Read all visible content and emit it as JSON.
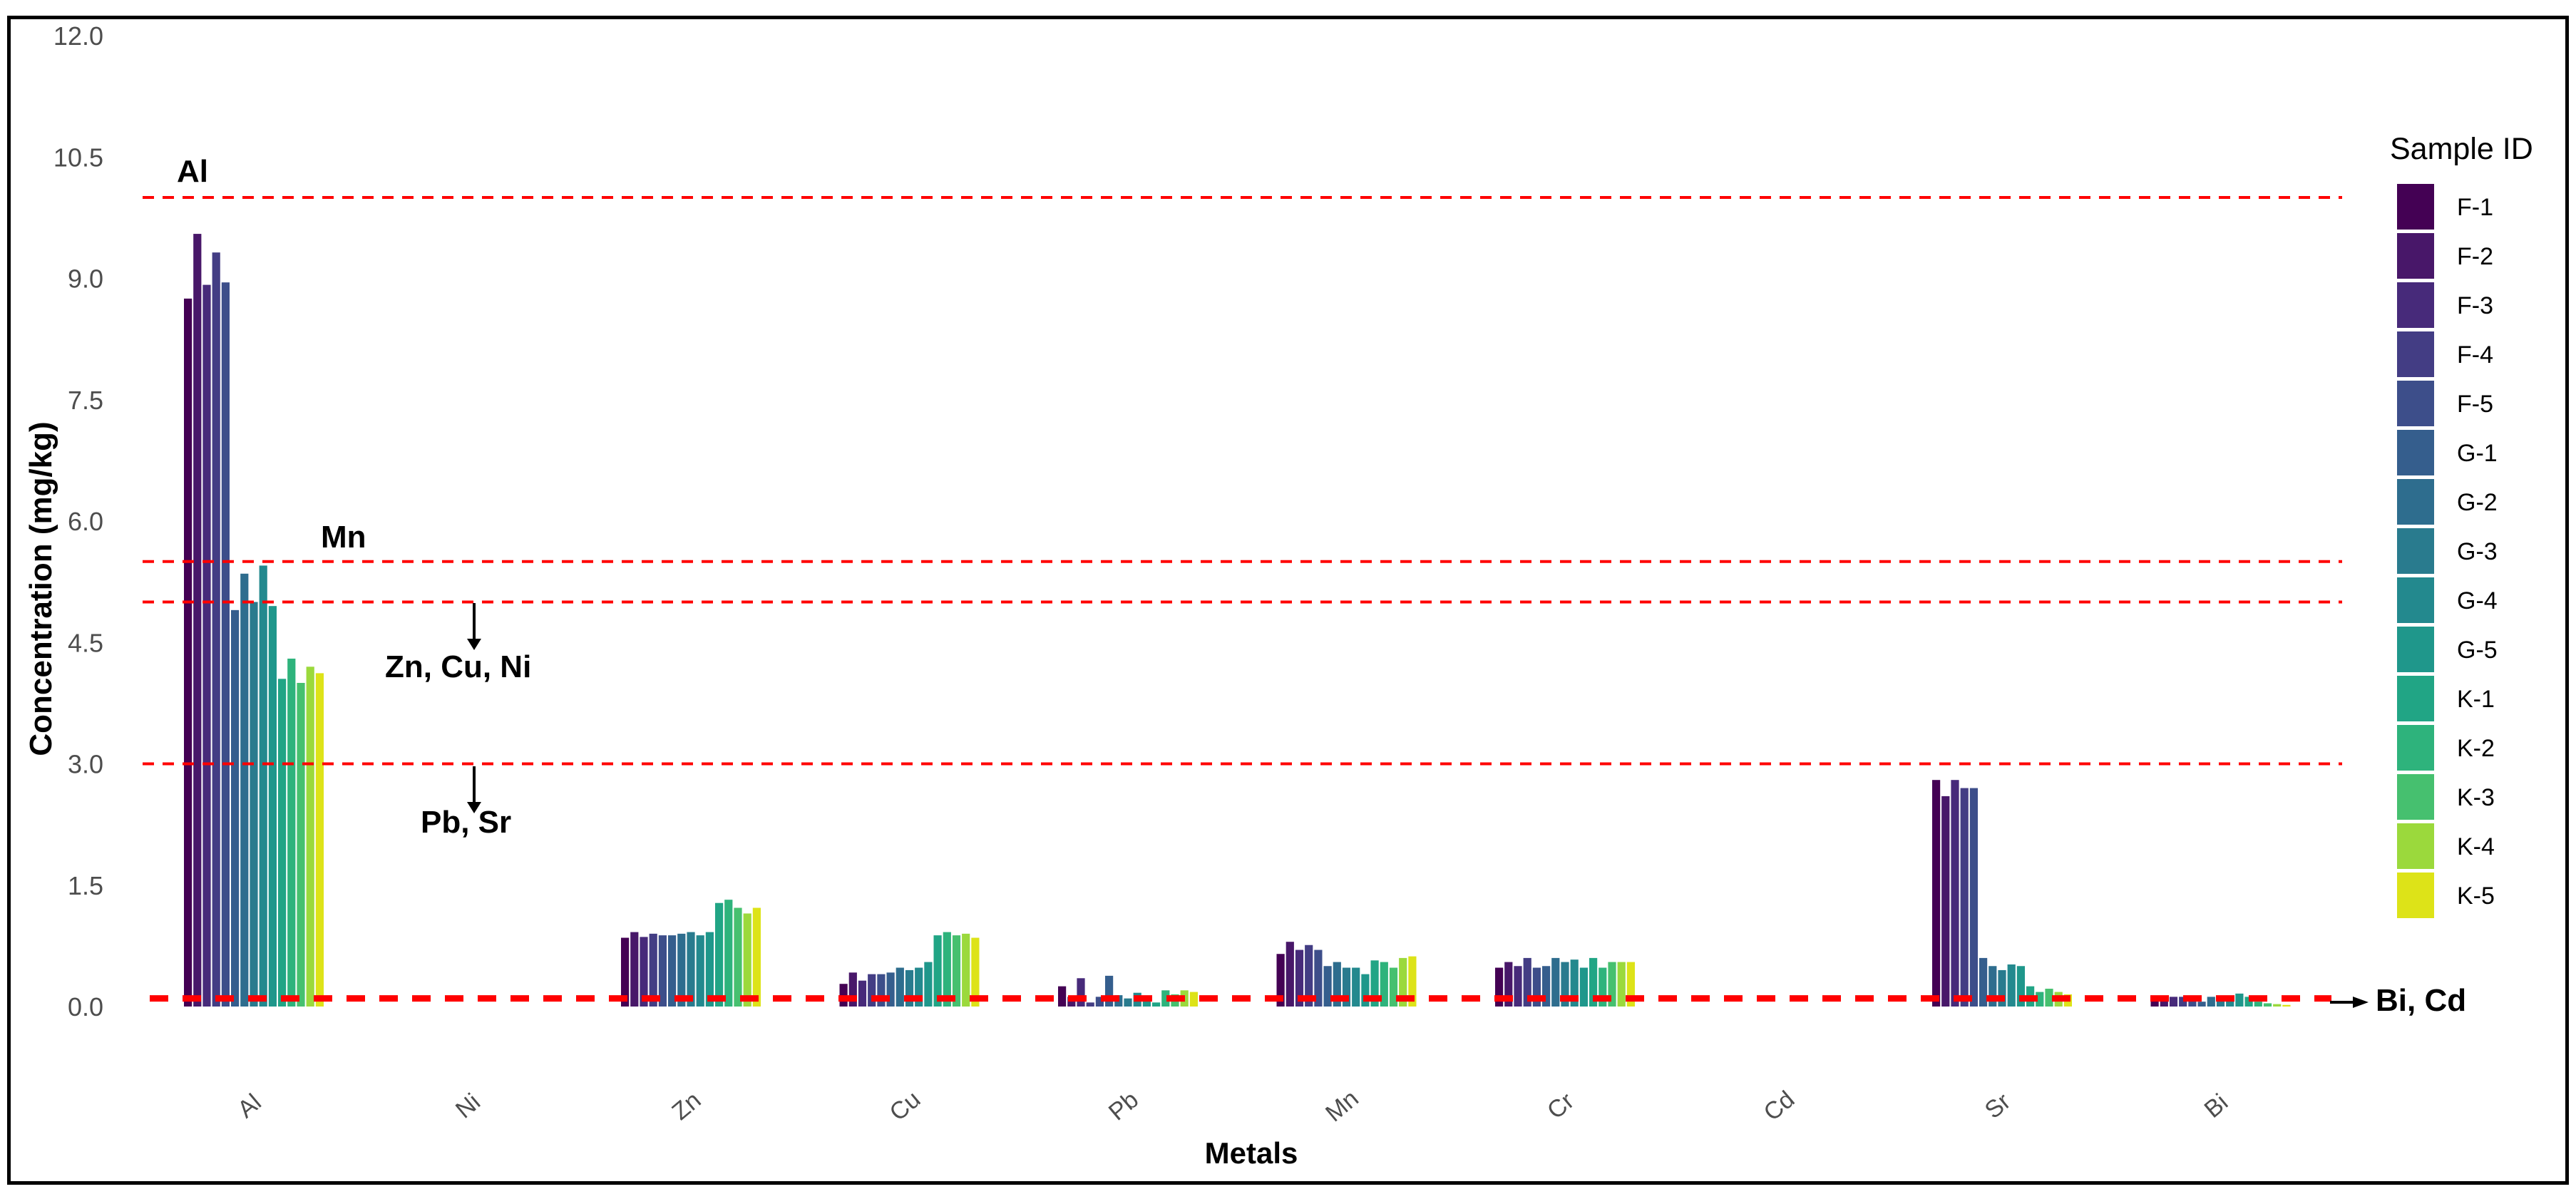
{
  "chart_data": {
    "type": "bar",
    "title": "",
    "xlabel": "Metals",
    "ylabel": "Concentration (mg/kg)",
    "ylim": [
      0,
      12
    ],
    "yticks": [
      "0.0",
      "1.5",
      "3.0",
      "4.5",
      "6.0",
      "7.5",
      "9.0",
      "10.5",
      "12.0"
    ],
    "categories": [
      "Al",
      "Ni",
      "Zn",
      "Cu",
      "Pb",
      "Mn",
      "Cr",
      "Cd",
      "Sr",
      "Bi"
    ],
    "legend_title": "Sample ID",
    "legend_position": "right",
    "grid": false,
    "series": [
      {
        "name": "F-1",
        "color": "#440154",
        "values": [
          8.75,
          0,
          0.85,
          0.28,
          0.25,
          0.65,
          0.48,
          0,
          2.8,
          0.12
        ]
      },
      {
        "name": "F-2",
        "color": "#481769",
        "values": [
          9.55,
          0,
          0.92,
          0.42,
          0.12,
          0.8,
          0.55,
          0,
          2.6,
          0.1
        ]
      },
      {
        "name": "F-3",
        "color": "#472A7A",
        "values": [
          8.92,
          0,
          0.86,
          0.32,
          0.35,
          0.7,
          0.5,
          0,
          2.8,
          0.12
        ]
      },
      {
        "name": "F-4",
        "color": "#433D84",
        "values": [
          9.32,
          0,
          0.9,
          0.4,
          0.05,
          0.76,
          0.6,
          0,
          2.7,
          0.12
        ]
      },
      {
        "name": "F-5",
        "color": "#3D4E8A",
        "values": [
          8.95,
          0,
          0.88,
          0.4,
          0.12,
          0.7,
          0.48,
          0,
          2.7,
          0.08
        ]
      },
      {
        "name": "G-1",
        "color": "#355E8D",
        "values": [
          4.9,
          0,
          0.88,
          0.42,
          0.38,
          0.5,
          0.5,
          0,
          0.6,
          0.06
        ]
      },
      {
        "name": "G-2",
        "color": "#2E6D8E",
        "values": [
          5.35,
          0,
          0.9,
          0.48,
          0.14,
          0.55,
          0.6,
          0,
          0.5,
          0.12
        ]
      },
      {
        "name": "G-3",
        "color": "#297B8E",
        "values": [
          5.0,
          0,
          0.92,
          0.45,
          0.1,
          0.48,
          0.55,
          0,
          0.45,
          0.12
        ]
      },
      {
        "name": "G-4",
        "color": "#23898E",
        "values": [
          5.45,
          0,
          0.88,
          0.48,
          0.17,
          0.48,
          0.58,
          0,
          0.52,
          0.1
        ]
      },
      {
        "name": "G-5",
        "color": "#1F978B",
        "values": [
          4.95,
          0,
          0.92,
          0.55,
          0.12,
          0.4,
          0.48,
          0,
          0.5,
          0.16
        ]
      },
      {
        "name": "K-1",
        "color": "#21A585",
        "values": [
          4.05,
          0,
          1.28,
          0.88,
          0.05,
          0.57,
          0.6,
          0,
          0.25,
          0.12
        ]
      },
      {
        "name": "K-2",
        "color": "#2EB37C",
        "values": [
          4.3,
          0,
          1.32,
          0.92,
          0.2,
          0.55,
          0.48,
          0,
          0.18,
          0.06
        ]
      },
      {
        "name": "K-3",
        "color": "#46C06F",
        "values": [
          4.0,
          0,
          1.22,
          0.88,
          0.15,
          0.48,
          0.55,
          0,
          0.22,
          0.04
        ]
      },
      {
        "name": "K-4",
        "color": "#9BD93C",
        "values": [
          4.2,
          0,
          1.15,
          0.9,
          0.2,
          0.6,
          0.55,
          0,
          0.18,
          0.03
        ]
      },
      {
        "name": "K-5",
        "color": "#DDE318",
        "values": [
          4.12,
          0,
          1.22,
          0.85,
          0.18,
          0.62,
          0.55,
          0,
          0.15,
          0.02
        ]
      }
    ],
    "reference_lines": [
      {
        "y": 10.0,
        "color": "#FF0000",
        "style": "dashed"
      },
      {
        "y": 5.5,
        "color": "#FF0000",
        "style": "dashed"
      },
      {
        "y": 5.0,
        "color": "#FF0000",
        "style": "dashed"
      },
      {
        "y": 3.0,
        "color": "#FF0000",
        "style": "dashed"
      },
      {
        "y": 0.1,
        "color": "#FF0000",
        "style": "dashed"
      }
    ],
    "annotations": [
      {
        "text": "Al",
        "y": 10.0
      },
      {
        "text": "Mn",
        "y": 5.5
      },
      {
        "text": "Zn, Cu, Ni",
        "y": 5.0
      },
      {
        "text": "Pb, Sr",
        "y": 3.0
      },
      {
        "text": "Bi, Cd",
        "y": 0.1
      }
    ]
  }
}
